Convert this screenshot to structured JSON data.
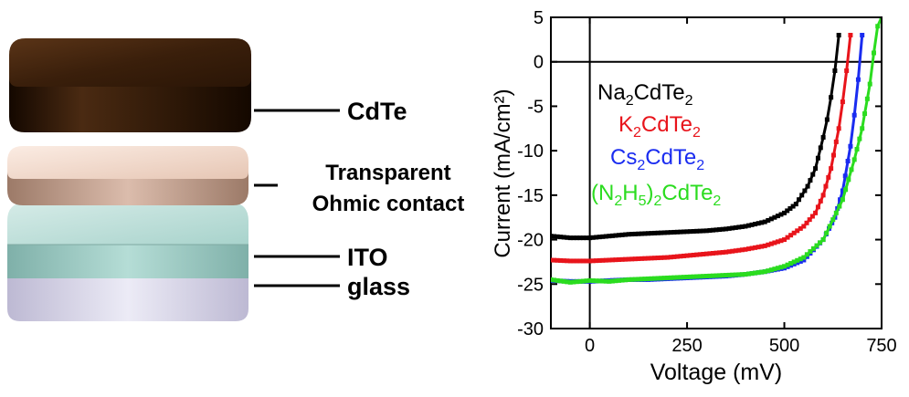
{
  "diagram": {
    "layers": [
      {
        "key": "cdte",
        "label": "CdTe",
        "color": "#3a200c"
      },
      {
        "key": "contact",
        "label_line1": "Transparent",
        "label_line2": "Ohmic contact",
        "color": "#e7cabb"
      },
      {
        "key": "ito",
        "label": "ITO",
        "color": "#a7d4cc"
      },
      {
        "key": "glass",
        "label": "glass",
        "color": "#d9d6ea"
      }
    ]
  },
  "chart_data": {
    "type": "line",
    "xlabel": "Voltage (mV)",
    "ylabel": "Current (mA/cm²)",
    "xlim": [
      -100,
      750
    ],
    "ylim": [
      -30,
      5
    ],
    "xticks": [
      0,
      250,
      500,
      750
    ],
    "yticks": [
      5,
      0,
      -5,
      -10,
      -15,
      -20,
      -25,
      -30
    ],
    "grid": false,
    "legend_placement": "top-center",
    "series": [
      {
        "name": "Na2CdTe2",
        "color": "#000000",
        "x": [
          -100,
          -50,
          0,
          50,
          100,
          150,
          200,
          250,
          300,
          350,
          400,
          450,
          500,
          530,
          560,
          580,
          600,
          610,
          620,
          630,
          640
        ],
        "values": [
          -19.6,
          -19.8,
          -19.8,
          -19.6,
          -19.4,
          -19.3,
          -19.2,
          -19.1,
          -19.0,
          -18.8,
          -18.5,
          -18.0,
          -17.0,
          -16.0,
          -14.0,
          -12.0,
          -8.5,
          -6.5,
          -4.0,
          -1.0,
          3.0
        ]
      },
      {
        "name": "K2CdTe2",
        "color": "#e8141b",
        "x": [
          -100,
          -50,
          0,
          50,
          100,
          150,
          200,
          250,
          300,
          350,
          400,
          450,
          500,
          550,
          580,
          600,
          620,
          640,
          650,
          660,
          670
        ],
        "values": [
          -22.3,
          -22.4,
          -22.4,
          -22.3,
          -22.2,
          -22.1,
          -22.0,
          -21.8,
          -21.6,
          -21.4,
          -21.1,
          -20.7,
          -20.0,
          -18.5,
          -17.0,
          -15.0,
          -12.0,
          -7.5,
          -4.5,
          -1.0,
          3.0
        ]
      },
      {
        "name": "Cs2CdTe2",
        "color": "#1a2cf0",
        "x": [
          -100,
          -50,
          0,
          50,
          100,
          150,
          200,
          250,
          300,
          350,
          400,
          450,
          500,
          550,
          600,
          630,
          650,
          670,
          680,
          690,
          700
        ],
        "values": [
          -24.6,
          -24.7,
          -24.7,
          -24.6,
          -24.5,
          -24.5,
          -24.4,
          -24.3,
          -24.2,
          -24.1,
          -23.9,
          -23.6,
          -23.2,
          -22.3,
          -20.0,
          -17.5,
          -14.5,
          -9.5,
          -6.0,
          -2.0,
          3.0
        ]
      },
      {
        "name": "(N2H5)2CdTe2",
        "color": "#2bdc1f",
        "x": [
          -100,
          -50,
          0,
          50,
          100,
          150,
          200,
          250,
          300,
          350,
          400,
          450,
          500,
          550,
          600,
          650,
          680,
          700,
          720,
          730,
          740,
          750
        ],
        "values": [
          -24.5,
          -24.8,
          -24.6,
          -24.7,
          -24.5,
          -24.4,
          -24.3,
          -24.2,
          -24.1,
          -24.0,
          -23.9,
          -23.6,
          -23.0,
          -22.0,
          -20.0,
          -15.5,
          -11.0,
          -7.5,
          -2.5,
          1.0,
          4.0,
          5.0
        ]
      }
    ]
  }
}
